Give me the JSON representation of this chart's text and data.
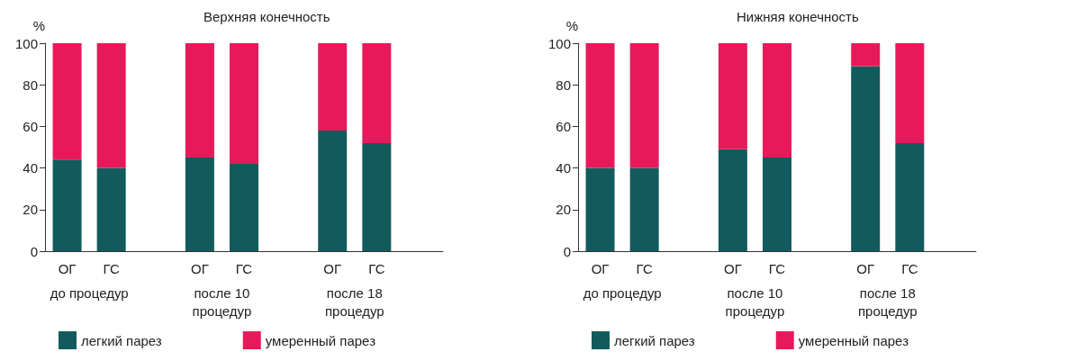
{
  "chart_data": [
    {
      "type": "bar",
      "title": "Верхняя конечность",
      "ylabel": "%",
      "stacked": true,
      "legend": "bottom left",
      "grid": false,
      "categories": [
        "ОГ",
        "ГС",
        null,
        "ОГ",
        "ГС",
        null,
        "ОГ",
        "ГС",
        null
      ],
      "ylim": [
        0,
        100
      ],
      "yticks": [
        0,
        20,
        40,
        60,
        80,
        100
      ],
      "series": [
        {
          "name": "легкий парез",
          "color": "#135a5c",
          "values": [
            44,
            40,
            null,
            45,
            42,
            null,
            58,
            52,
            null
          ]
        },
        {
          "name": "умеренный парез",
          "color": "#e8195a",
          "values": [
            56,
            60,
            null,
            55,
            58,
            null,
            42,
            48,
            null
          ]
        }
      ],
      "annotations": [
        "до процедур",
        "после 10\nпроцедур",
        "после 18\nпроцедур"
      ]
    },
    {
      "type": "bar",
      "title": "Нижняя конечность",
      "ylabel": "%",
      "stacked": true,
      "legend": "bottom left",
      "grid": false,
      "categories": [
        "ОГ",
        "ГС",
        null,
        "ОГ",
        "ГС",
        null,
        "ОГ",
        "ГС",
        null
      ],
      "ylim": [
        0,
        100
      ],
      "yticks": [
        0,
        20,
        40,
        60,
        80,
        100
      ],
      "series": [
        {
          "name": "легкий парез",
          "color": "#135a5c",
          "values": [
            40,
            40,
            null,
            49,
            45,
            null,
            89,
            52,
            null
          ]
        },
        {
          "name": "умеренный парез",
          "color": "#e8195a",
          "values": [
            60,
            60,
            null,
            51,
            55,
            null,
            11,
            48,
            null
          ]
        }
      ],
      "annotations": [
        "до процедур",
        "после 10\nпроцедур",
        "после 18\nпроцедур"
      ]
    }
  ]
}
